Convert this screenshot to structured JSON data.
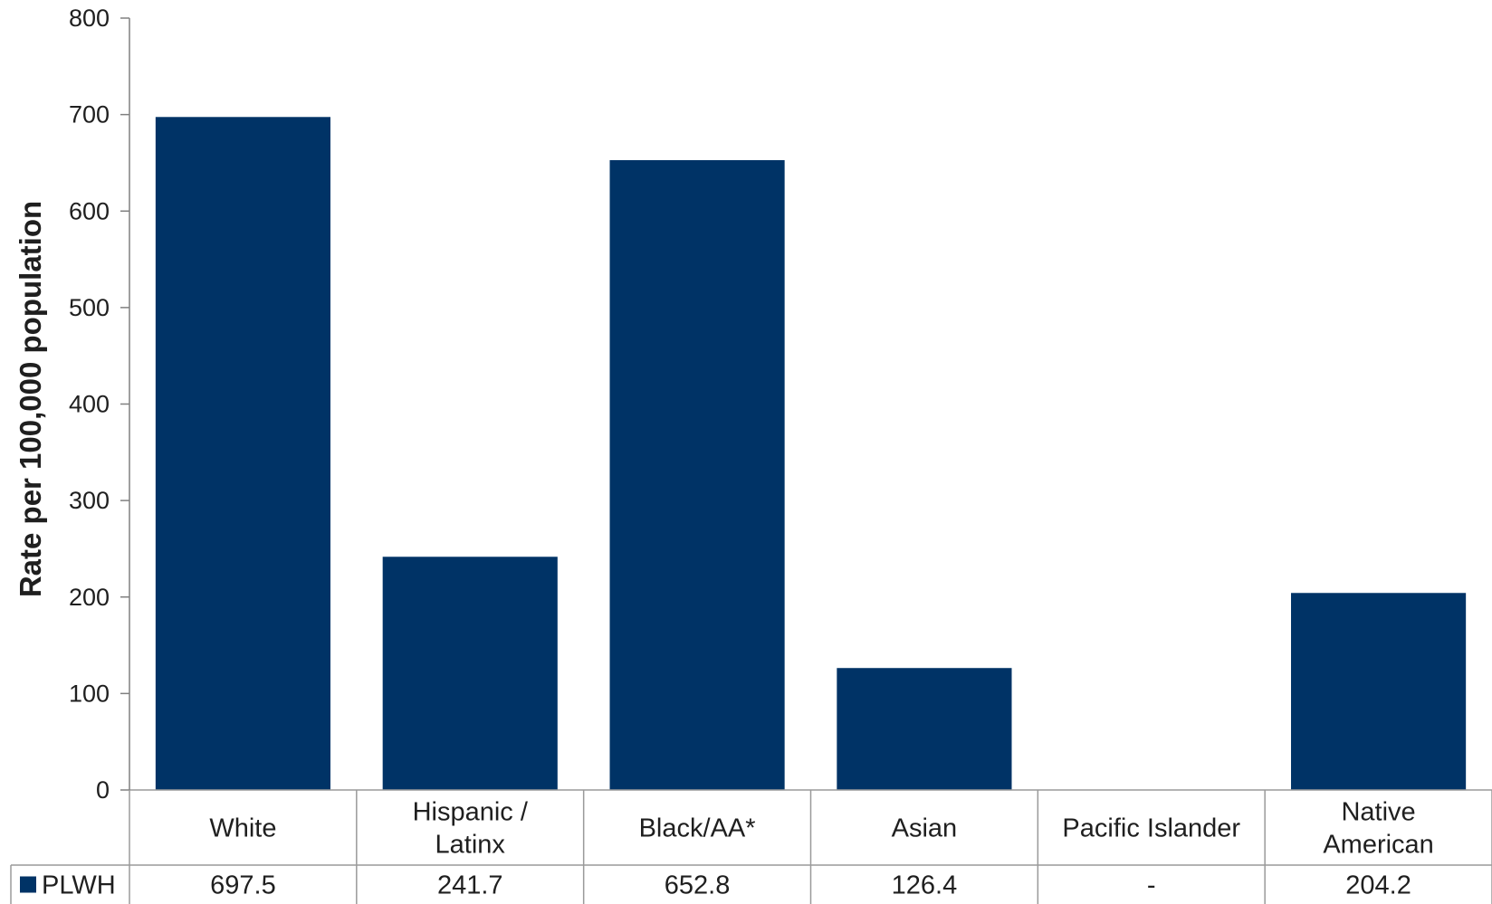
{
  "chart_data": {
    "type": "bar",
    "categories": [
      [
        "White"
      ],
      [
        "Hispanic /",
        "Latinx"
      ],
      [
        "Black/AA*"
      ],
      [
        "Asian"
      ],
      [
        "Pacific Islander"
      ],
      [
        "Native",
        "American"
      ]
    ],
    "series": [
      {
        "name": "PLWH",
        "values": [
          697.5,
          241.7,
          652.8,
          126.4,
          null,
          204.2
        ],
        "table_labels": [
          "697.5",
          "241.7",
          "652.8",
          "126.4",
          "-",
          "204.2"
        ]
      }
    ],
    "ylabel": "Rate per 100,000 population",
    "ylim": [
      0,
      800
    ],
    "yticks": [
      0,
      100,
      200,
      300,
      400,
      500,
      600,
      700,
      800
    ],
    "colors": {
      "bar": "#003366"
    },
    "data_table": true
  }
}
